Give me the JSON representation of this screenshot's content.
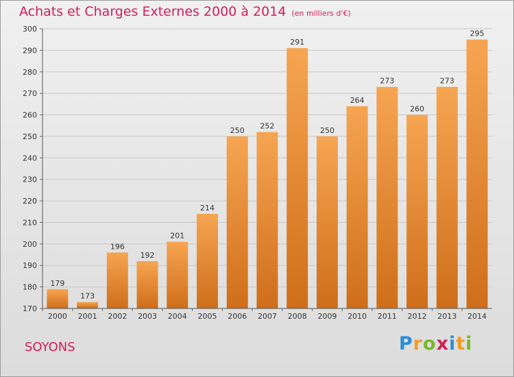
{
  "title": "Achats et Charges Externes 2000 à 2014",
  "subtitle": "(en milliers d'€)",
  "location": "SOYONS",
  "logo": {
    "text": "Proxiti",
    "letters": [
      "P",
      "r",
      "o",
      "x",
      "i",
      "t",
      "i"
    ],
    "colors": [
      "#2b8ed6",
      "#f39c1f",
      "#79b82a",
      "#d01e58",
      "#2b8ed6",
      "#f39c1f",
      "#79b82a"
    ]
  },
  "colors": {
    "bar_light": "#f6a552",
    "bar_dark": "#cf6e1a",
    "title": "#d01e58",
    "grid": "#c8c8c8"
  },
  "chart_data": {
    "type": "bar",
    "title": "Achats et Charges Externes 2000 à 2014",
    "subtitle": "(en milliers d'€)",
    "categories": [
      "2000",
      "2001",
      "2002",
      "2003",
      "2004",
      "2005",
      "2006",
      "2007",
      "2008",
      "2009",
      "2010",
      "2011",
      "2012",
      "2013",
      "2014"
    ],
    "values": [
      179,
      173,
      196,
      192,
      201,
      214,
      250,
      252,
      291,
      250,
      264,
      273,
      260,
      273,
      295
    ],
    "ylim": [
      170,
      300
    ],
    "yticks": [
      170,
      180,
      190,
      200,
      210,
      220,
      230,
      240,
      250,
      260,
      270,
      280,
      290,
      300
    ],
    "grid": true,
    "data_labels": true
  }
}
